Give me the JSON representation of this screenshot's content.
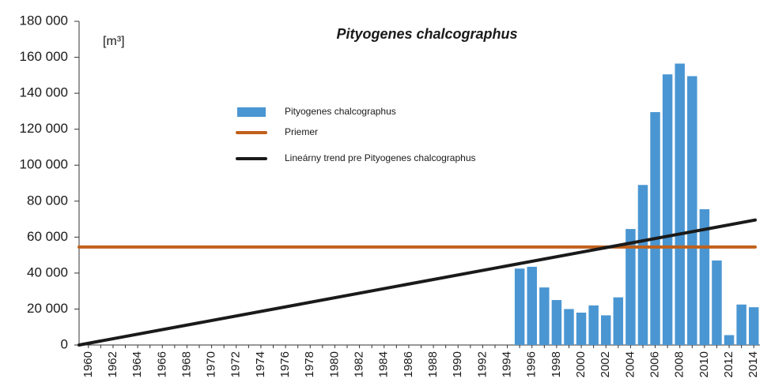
{
  "chart_data": {
    "type": "bar",
    "title": "Pityogenes chalcographus",
    "y_label": "[m³]",
    "categories": [
      "1960",
      null,
      "1962",
      null,
      "1964",
      null,
      "1966",
      null,
      "1968",
      null,
      "1970",
      null,
      "1972",
      null,
      "1974",
      null,
      "1976",
      null,
      "1978",
      null,
      "1980",
      null,
      "1982",
      null,
      "1984",
      null,
      "1986",
      null,
      "1988",
      null,
      "1990",
      null,
      "1992",
      null,
      "1994",
      null,
      "1996",
      null,
      "1998",
      null,
      "2000",
      null,
      "2002",
      null,
      "2004",
      null,
      "2006",
      null,
      "2008",
      null,
      "2010",
      null,
      "2012",
      null,
      "2014"
    ],
    "series": [
      {
        "name": "Pityogenes chalcographus",
        "color": "#4a96d2",
        "type": "bar",
        "values": [
          null,
          null,
          null,
          null,
          null,
          null,
          null,
          null,
          null,
          null,
          null,
          null,
          null,
          null,
          null,
          null,
          null,
          null,
          null,
          null,
          null,
          null,
          null,
          null,
          null,
          null,
          null,
          null,
          null,
          null,
          null,
          null,
          null,
          null,
          null,
          42500,
          43500,
          32000,
          25000,
          20000,
          18000,
          22000,
          16500,
          26500,
          64500,
          89000,
          129500,
          150500,
          156500,
          149500,
          75500,
          47000,
          5500,
          22500,
          21000
        ]
      },
      {
        "name": "Priemer",
        "color": "#c0601a",
        "type": "line",
        "values": [
          54500,
          null,
          null,
          null,
          null,
          null,
          null,
          null,
          null,
          null,
          null,
          null,
          null,
          null,
          null,
          null,
          null,
          null,
          null,
          null,
          null,
          null,
          null,
          null,
          null,
          null,
          null,
          null,
          null,
          null,
          null,
          null,
          null,
          null,
          null,
          null,
          null,
          null,
          null,
          null,
          null,
          null,
          null,
          null,
          null,
          null,
          null,
          null,
          null,
          null,
          null,
          null,
          null,
          null,
          54500
        ]
      },
      {
        "name": "Lineárny trend pre Pityogenes chalcographus",
        "color": "#1a1a1a",
        "type": "line",
        "values": [
          0,
          null,
          null,
          null,
          null,
          null,
          null,
          null,
          null,
          null,
          null,
          null,
          null,
          null,
          null,
          null,
          null,
          null,
          null,
          null,
          null,
          null,
          null,
          null,
          null,
          null,
          null,
          null,
          null,
          null,
          null,
          null,
          null,
          null,
          null,
          null,
          null,
          null,
          null,
          null,
          null,
          null,
          null,
          null,
          null,
          null,
          null,
          null,
          null,
          null,
          null,
          null,
          null,
          null,
          69500
        ]
      }
    ],
    "ylim": [
      0,
      180000
    ],
    "yticks": [
      0,
      {
        "value": 20000,
        "label": "20 000"
      },
      {
        "value": 40000,
        "label": "40 000"
      },
      {
        "value": 60000,
        "label": "60 000"
      },
      {
        "value": 80000,
        "label": "80 000"
      },
      {
        "value": 100000,
        "label": "100 000"
      },
      {
        "value": 120000,
        "label": "120 000"
      },
      {
        "value": 140000,
        "label": "140 000"
      },
      {
        "value": 160000,
        "label": "160 000"
      },
      {
        "value": 180000,
        "label": "180 000"
      }
    ],
    "grid": false
  }
}
